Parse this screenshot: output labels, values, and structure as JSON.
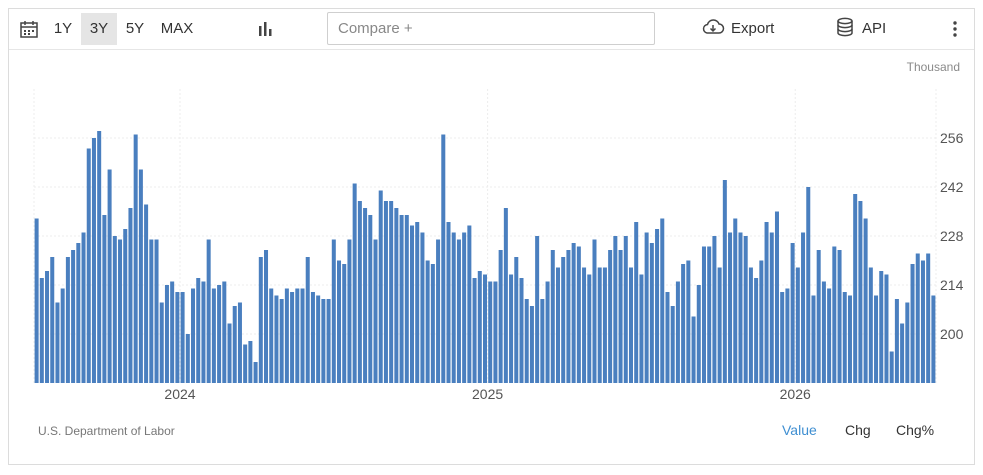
{
  "toolbar": {
    "ranges": [
      "1Y",
      "3Y",
      "5Y",
      "MAX"
    ],
    "active_range": "3Y",
    "compare_placeholder": "Compare +",
    "export_label": "Export",
    "api_label": "API",
    "icons": [
      "calendar-icon",
      "bar-chart-icon",
      "cloud-download-icon",
      "database-icon",
      "more-vertical-icon"
    ]
  },
  "chart_data": {
    "type": "bar",
    "unit": "Thousand",
    "source": "U.S. Department of Labor",
    "bar_color": "#4a7fbf",
    "x_labels": [
      "2024",
      "2025",
      "2026"
    ],
    "x_label_positions": [
      28,
      87,
      146
    ],
    "yticks": [
      200,
      214,
      228,
      242,
      256
    ],
    "ylim": [
      186,
      270
    ],
    "grid": true,
    "values": [
      233,
      216,
      218,
      222,
      209,
      213,
      222,
      224,
      226,
      229,
      253,
      256,
      258,
      234,
      247,
      228,
      227,
      230,
      236,
      257,
      247,
      237,
      227,
      227,
      209,
      214,
      215,
      212,
      212,
      200,
      213,
      216,
      215,
      227,
      213,
      214,
      215,
      203,
      208,
      209,
      197,
      198,
      192,
      222,
      224,
      213,
      211,
      210,
      213,
      212,
      213,
      213,
      222,
      212,
      211,
      210,
      210,
      227,
      221,
      220,
      227,
      243,
      238,
      236,
      234,
      227,
      241,
      238,
      238,
      236,
      234,
      234,
      231,
      232,
      229,
      221,
      220,
      227,
      257,
      232,
      229,
      227,
      229,
      231,
      216,
      218,
      217,
      215,
      215,
      224,
      236,
      217,
      222,
      216,
      210,
      208,
      228,
      210,
      215,
      224,
      219,
      222,
      224,
      226,
      225,
      219,
      217,
      227,
      219,
      219,
      224,
      228,
      224,
      228,
      219,
      232,
      217,
      229,
      226,
      230,
      233,
      212,
      208,
      215,
      220,
      221,
      205,
      214,
      225,
      225,
      228,
      219,
      244,
      229,
      233,
      229,
      228,
      219,
      216,
      221,
      232,
      229,
      235,
      212,
      213,
      226,
      219,
      229,
      242,
      211,
      224,
      215,
      213,
      225,
      224,
      212,
      211,
      240,
      238,
      233,
      219,
      211,
      218,
      217,
      195,
      210,
      203,
      209,
      220,
      223,
      221,
      223,
      211
    ],
    "tooltip_modes": [
      "Value",
      "Chg",
      "Chg%"
    ],
    "active_mode": "Value"
  }
}
